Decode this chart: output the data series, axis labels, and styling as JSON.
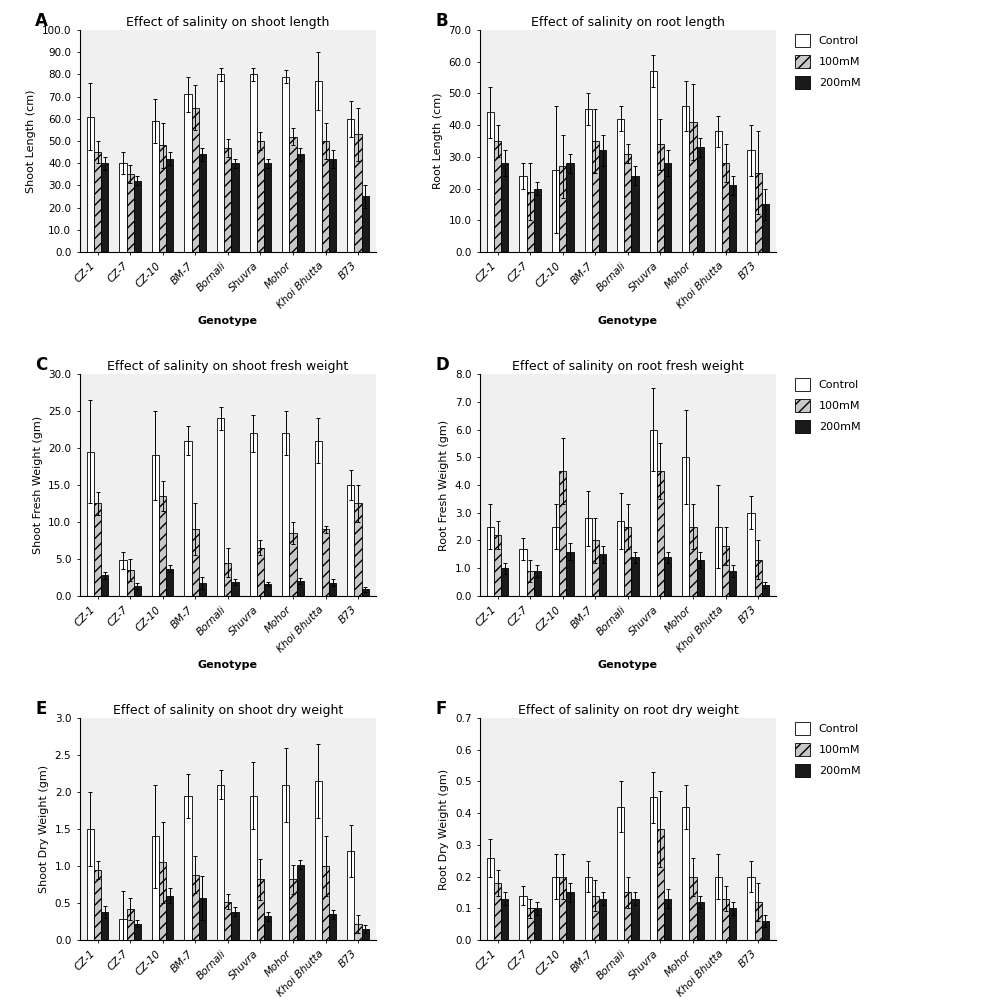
{
  "genotypes": [
    "CZ-1",
    "CZ-7",
    "CZ-10",
    "BM-7",
    "Bornali",
    "Shuvra",
    "Mohor",
    "Khoi Bhutta",
    "B73"
  ],
  "panels": [
    {
      "label": "A",
      "title": "Effect of salinity on shoot length",
      "ylabel": "Shoot Length (cm)",
      "ylim": [
        0,
        100.0
      ],
      "yticks": [
        0.0,
        10.0,
        20.0,
        30.0,
        40.0,
        50.0,
        60.0,
        70.0,
        80.0,
        90.0,
        100.0
      ],
      "control": [
        61,
        40,
        59,
        71,
        80,
        80,
        79,
        77,
        60
      ],
      "m100": [
        45,
        35,
        48,
        65,
        47,
        50,
        52,
        50,
        53
      ],
      "m200": [
        40,
        32,
        42,
        44,
        40,
        40,
        44,
        42,
        25
      ],
      "control_err": [
        15,
        5,
        10,
        8,
        3,
        3,
        3,
        13,
        8
      ],
      "m100_err": [
        5,
        4,
        10,
        10,
        4,
        4,
        4,
        8,
        12
      ],
      "m200_err": [
        3,
        2,
        3,
        3,
        2,
        2,
        3,
        4,
        5
      ]
    },
    {
      "label": "B",
      "title": "Effect of salinity on root length",
      "ylabel": "Root Length (cm)",
      "ylim": [
        0,
        70.0
      ],
      "yticks": [
        0.0,
        10.0,
        20.0,
        30.0,
        40.0,
        50.0,
        60.0,
        70.0
      ],
      "control": [
        44,
        24,
        26,
        45,
        42,
        57,
        46,
        38,
        32
      ],
      "m100": [
        35,
        19,
        27,
        35,
        31,
        34,
        41,
        28,
        25
      ],
      "m200": [
        28,
        20,
        28,
        32,
        24,
        28,
        33,
        21,
        15
      ],
      "control_err": [
        8,
        4,
        20,
        5,
        4,
        5,
        8,
        5,
        8
      ],
      "m100_err": [
        5,
        9,
        10,
        10,
        3,
        8,
        12,
        6,
        13
      ],
      "m200_err": [
        4,
        2,
        3,
        5,
        3,
        4,
        3,
        3,
        5
      ]
    },
    {
      "label": "C",
      "title": "Effect of salinity on shoot fresh weight",
      "ylabel": "Shoot Fresh Weight (gm)",
      "ylim": [
        0,
        30.0
      ],
      "yticks": [
        0.0,
        5.0,
        10.0,
        15.0,
        20.0,
        25.0,
        30.0
      ],
      "control": [
        19.5,
        4.8,
        19.0,
        21.0,
        24.0,
        22.0,
        22.0,
        21.0,
        15.0
      ],
      "m100": [
        12.5,
        3.5,
        13.5,
        9.0,
        4.5,
        6.5,
        8.5,
        9.0,
        12.5
      ],
      "m200": [
        2.8,
        1.3,
        3.7,
        1.7,
        1.9,
        1.6,
        2.0,
        1.8,
        0.9
      ],
      "control_err": [
        7.0,
        1.2,
        6.0,
        2.0,
        1.5,
        2.5,
        3.0,
        3.0,
        2.0
      ],
      "m100_err": [
        1.5,
        1.5,
        2.0,
        3.5,
        2.0,
        1.0,
        1.5,
        0.5,
        2.5
      ],
      "m200_err": [
        0.5,
        0.4,
        0.5,
        0.8,
        0.4,
        0.3,
        0.4,
        0.5,
        0.3
      ]
    },
    {
      "label": "D",
      "title": "Effect of salinity on root fresh weight",
      "ylabel": "Root Fresh Weight (gm)",
      "ylim": [
        0,
        8.0
      ],
      "yticks": [
        0.0,
        1.0,
        2.0,
        3.0,
        4.0,
        5.0,
        6.0,
        7.0,
        8.0
      ],
      "control": [
        2.5,
        1.7,
        2.5,
        2.8,
        2.7,
        6.0,
        5.0,
        2.5,
        3.0
      ],
      "m100": [
        2.2,
        0.9,
        4.5,
        2.0,
        2.5,
        4.5,
        2.5,
        1.8,
        1.3
      ],
      "m200": [
        1.0,
        0.9,
        1.6,
        1.5,
        1.4,
        1.4,
        1.3,
        0.9,
        0.4
      ],
      "control_err": [
        0.8,
        0.4,
        0.8,
        1.0,
        1.0,
        1.5,
        1.7,
        1.5,
        0.6
      ],
      "m100_err": [
        0.5,
        0.4,
        1.2,
        0.8,
        0.8,
        1.0,
        0.8,
        0.7,
        0.7
      ],
      "m200_err": [
        0.2,
        0.2,
        0.3,
        0.3,
        0.2,
        0.2,
        0.3,
        0.2,
        0.1
      ]
    },
    {
      "label": "E",
      "title": "Effect of salinity on shoot dry weight",
      "ylabel": "Shoot Dry Weight (gm)",
      "ylim": [
        0,
        3.0
      ],
      "yticks": [
        0.0,
        0.5,
        1.0,
        1.5,
        2.0,
        2.5,
        3.0
      ],
      "control": [
        1.5,
        0.28,
        1.4,
        1.95,
        2.1,
        1.95,
        2.1,
        2.15,
        1.2
      ],
      "m100": [
        0.95,
        0.42,
        1.05,
        0.88,
        0.52,
        0.82,
        0.82,
        1.0,
        0.22
      ],
      "m200": [
        0.38,
        0.22,
        0.6,
        0.57,
        0.38,
        0.32,
        1.02,
        0.35,
        0.15
      ],
      "control_err": [
        0.5,
        0.38,
        0.7,
        0.3,
        0.2,
        0.45,
        0.5,
        0.5,
        0.35
      ],
      "m100_err": [
        0.12,
        0.15,
        0.55,
        0.25,
        0.1,
        0.28,
        0.2,
        0.4,
        0.12
      ],
      "m200_err": [
        0.08,
        0.05,
        0.1,
        0.3,
        0.06,
        0.06,
        0.06,
        0.06,
        0.05
      ]
    },
    {
      "label": "F",
      "title": "Effect of salinity on root dry weight",
      "ylabel": "Root Dry Weight (gm)",
      "ylim": [
        0,
        0.7
      ],
      "yticks": [
        0.0,
        0.1,
        0.2,
        0.3,
        0.4,
        0.5,
        0.6,
        0.7
      ],
      "control": [
        0.26,
        0.14,
        0.2,
        0.2,
        0.42,
        0.45,
        0.42,
        0.2,
        0.2
      ],
      "m100": [
        0.18,
        0.1,
        0.2,
        0.14,
        0.15,
        0.35,
        0.2,
        0.13,
        0.12
      ],
      "m200": [
        0.13,
        0.1,
        0.15,
        0.13,
        0.13,
        0.13,
        0.12,
        0.1,
        0.06
      ],
      "control_err": [
        0.06,
        0.03,
        0.07,
        0.05,
        0.08,
        0.08,
        0.07,
        0.07,
        0.05
      ],
      "m100_err": [
        0.04,
        0.03,
        0.07,
        0.05,
        0.05,
        0.12,
        0.06,
        0.04,
        0.06
      ],
      "m200_err": [
        0.02,
        0.02,
        0.03,
        0.02,
        0.02,
        0.03,
        0.02,
        0.02,
        0.02
      ]
    }
  ],
  "bar_colors": [
    "white",
    "#c8c8c8",
    "#1a1a1a"
  ],
  "bar_hatches": [
    "",
    "///",
    ""
  ],
  "bar_edgecolors": [
    "black",
    "black",
    "black"
  ],
  "legend_labels": [
    "Control",
    "100mM",
    "200mM"
  ],
  "xlabel": "Genotype",
  "bar_width": 0.22,
  "font_size": 8,
  "title_font_size": 9,
  "label_font_size": 8,
  "tick_font_size": 7.5,
  "bg_color": "#f0f0f0"
}
